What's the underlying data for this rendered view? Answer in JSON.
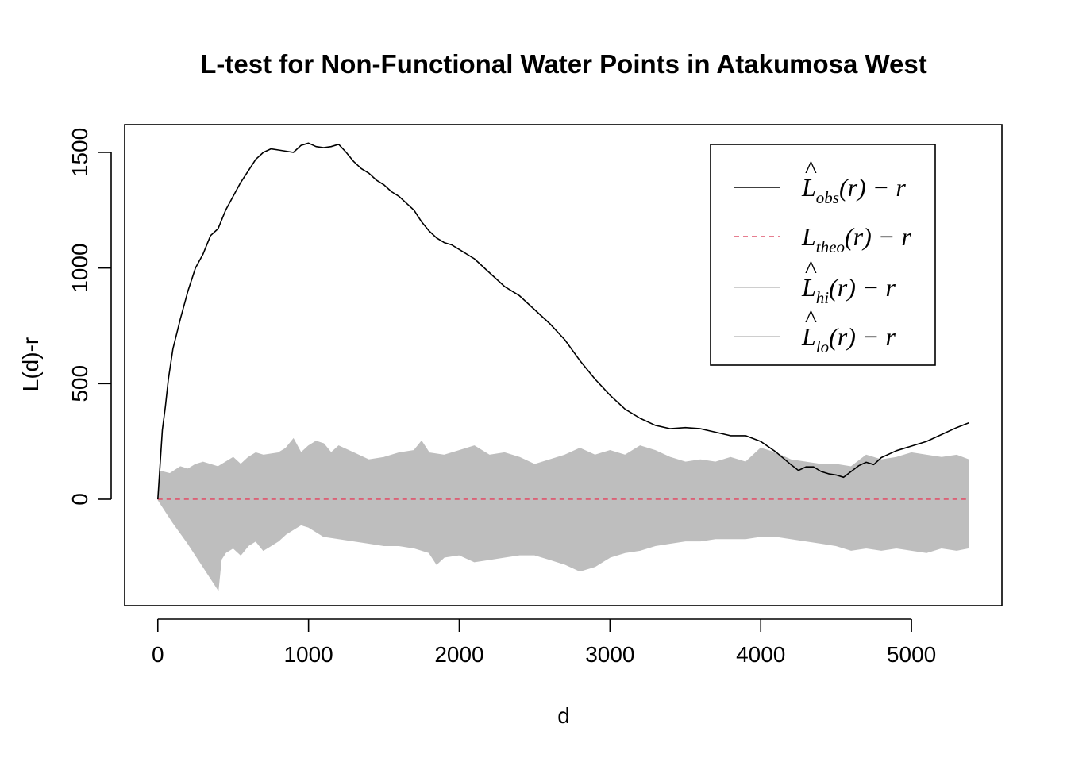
{
  "chart_data": {
    "type": "line",
    "title": "L-test for Non-Functional Water Points in Atakumosa West",
    "xlabel": "d",
    "ylabel": "L(d)-r",
    "xlim": [
      -220,
      5600
    ],
    "ylim": [
      -460,
      1620
    ],
    "x_ticks": [
      0,
      1000,
      2000,
      3000,
      4000,
      5000
    ],
    "y_ticks": [
      0,
      500,
      1000,
      1500
    ],
    "legend_position": "top-right",
    "colors": {
      "obs": "#000000",
      "theo": "#DF536B",
      "envelope": "#BEBEBE"
    },
    "legend": [
      {
        "id": "obs",
        "hat": "^",
        "main": "L",
        "sub": "obs",
        "rest": "(r) − r"
      },
      {
        "id": "theo",
        "hat": "",
        "main": "L",
        "sub": "theo",
        "rest": "(r) − r"
      },
      {
        "id": "hi",
        "hat": "^",
        "main": "L",
        "sub": "hi",
        "rest": "(r) − r"
      },
      {
        "id": "lo",
        "hat": "^",
        "main": "L",
        "sub": "lo",
        "rest": "(r) − r"
      }
    ],
    "series": [
      {
        "name": "obs",
        "x": [
          0,
          30,
          50,
          70,
          100,
          150,
          200,
          250,
          300,
          350,
          400,
          450,
          500,
          550,
          600,
          650,
          700,
          750,
          800,
          850,
          900,
          950,
          1000,
          1050,
          1100,
          1150,
          1200,
          1250,
          1300,
          1350,
          1400,
          1450,
          1500,
          1550,
          1600,
          1650,
          1700,
          1750,
          1800,
          1850,
          1900,
          1950,
          2000,
          2100,
          2200,
          2300,
          2400,
          2500,
          2600,
          2700,
          2800,
          2900,
          3000,
          3100,
          3200,
          3300,
          3400,
          3500,
          3600,
          3700,
          3800,
          3900,
          4000,
          4100,
          4200,
          4250,
          4300,
          4350,
          4400,
          4450,
          4500,
          4550,
          4600,
          4650,
          4700,
          4750,
          4800,
          4900,
          5000,
          5100,
          5200,
          5300,
          5380
        ],
        "values": [
          0,
          300,
          400,
          520,
          650,
          780,
          900,
          1000,
          1060,
          1140,
          1170,
          1250,
          1310,
          1370,
          1420,
          1470,
          1500,
          1515,
          1510,
          1505,
          1500,
          1530,
          1540,
          1525,
          1520,
          1525,
          1535,
          1500,
          1460,
          1430,
          1410,
          1380,
          1360,
          1330,
          1310,
          1280,
          1250,
          1200,
          1160,
          1130,
          1110,
          1100,
          1080,
          1040,
          980,
          920,
          880,
          820,
          760,
          690,
          600,
          520,
          450,
          390,
          350,
          320,
          305,
          310,
          305,
          290,
          275,
          275,
          250,
          205,
          150,
          125,
          140,
          140,
          120,
          110,
          105,
          95,
          120,
          145,
          160,
          150,
          180,
          210,
          230,
          250,
          280,
          310,
          330
        ]
      },
      {
        "name": "theo",
        "x": [
          0,
          5380
        ],
        "values": [
          0,
          0
        ]
      },
      {
        "name": "hi",
        "x": [
          0,
          20,
          80,
          150,
          200,
          250,
          300,
          400,
          500,
          550,
          600,
          650,
          700,
          800,
          850,
          900,
          950,
          1000,
          1050,
          1100,
          1150,
          1200,
          1300,
          1400,
          1500,
          1600,
          1700,
          1750,
          1800,
          1900,
          2000,
          2100,
          2200,
          2300,
          2400,
          2500,
          2600,
          2700,
          2800,
          2900,
          3000,
          3100,
          3200,
          3300,
          3400,
          3500,
          3600,
          3700,
          3800,
          3900,
          4000,
          4100,
          4200,
          4300,
          4400,
          4500,
          4600,
          4700,
          4800,
          4900,
          5000,
          5100,
          5200,
          5300,
          5380
        ],
        "values": [
          0,
          120,
          110,
          140,
          130,
          150,
          160,
          140,
          180,
          150,
          180,
          200,
          190,
          200,
          220,
          260,
          200,
          230,
          250,
          240,
          200,
          230,
          200,
          170,
          180,
          200,
          210,
          250,
          200,
          190,
          210,
          230,
          190,
          200,
          180,
          150,
          170,
          190,
          220,
          190,
          210,
          190,
          230,
          210,
          180,
          160,
          170,
          160,
          180,
          160,
          220,
          200,
          170,
          160,
          150,
          150,
          140,
          190,
          170,
          180,
          200,
          190,
          180,
          190,
          170
        ]
      },
      {
        "name": "lo",
        "x": [
          0,
          100,
          200,
          300,
          400,
          420,
          450,
          500,
          550,
          600,
          650,
          700,
          750,
          800,
          850,
          900,
          950,
          1000,
          1050,
          1100,
          1200,
          1300,
          1400,
          1500,
          1600,
          1700,
          1800,
          1850,
          1900,
          2000,
          2100,
          2200,
          2300,
          2400,
          2500,
          2600,
          2700,
          2800,
          2900,
          3000,
          3100,
          3200,
          3300,
          3400,
          3500,
          3600,
          3700,
          3800,
          3900,
          4000,
          4100,
          4200,
          4300,
          4400,
          4500,
          4600,
          4700,
          4800,
          4900,
          5000,
          5100,
          5200,
          5300,
          5380
        ],
        "values": [
          0,
          -100,
          -190,
          -290,
          -390,
          -260,
          -230,
          -210,
          -240,
          -200,
          -180,
          -220,
          -200,
          -180,
          -150,
          -130,
          -110,
          -120,
          -140,
          -160,
          -170,
          -180,
          -190,
          -200,
          -200,
          -210,
          -230,
          -280,
          -250,
          -240,
          -270,
          -260,
          -250,
          -240,
          -240,
          -260,
          -280,
          -310,
          -290,
          -250,
          -230,
          -220,
          -200,
          -190,
          -180,
          -180,
          -170,
          -170,
          -170,
          -160,
          -160,
          -170,
          -180,
          -190,
          -200,
          -220,
          -210,
          -220,
          -210,
          -220,
          -230,
          -210,
          -220,
          -210
        ]
      }
    ]
  }
}
